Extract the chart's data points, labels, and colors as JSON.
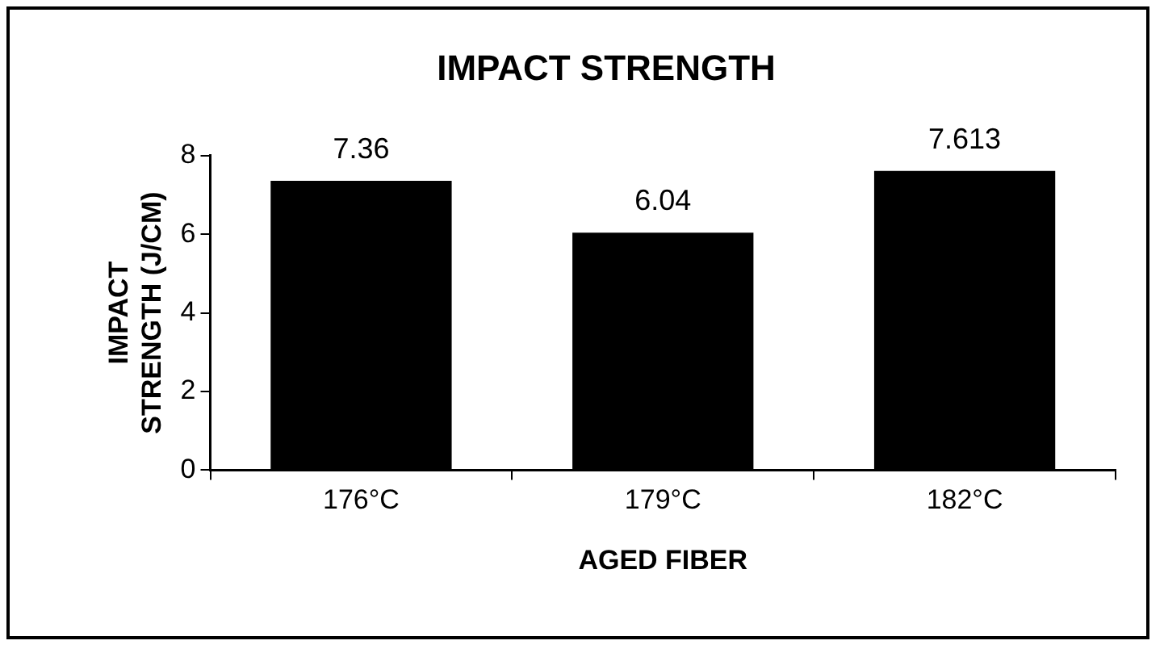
{
  "chart_data": {
    "type": "bar",
    "title": "IMPACT STRENGTH",
    "xlabel": "AGED FIBER",
    "ylabel": "IMPACT STRENGTH (J/CM)",
    "categories": [
      "176°C",
      "179°C",
      "182°C"
    ],
    "values": [
      7.36,
      6.04,
      7.613
    ],
    "color": "#000000",
    "ylim": [
      0,
      8
    ],
    "yticks": [
      0,
      2,
      4,
      6,
      8
    ],
    "data_labels": true,
    "grid": false,
    "legend": false
  }
}
